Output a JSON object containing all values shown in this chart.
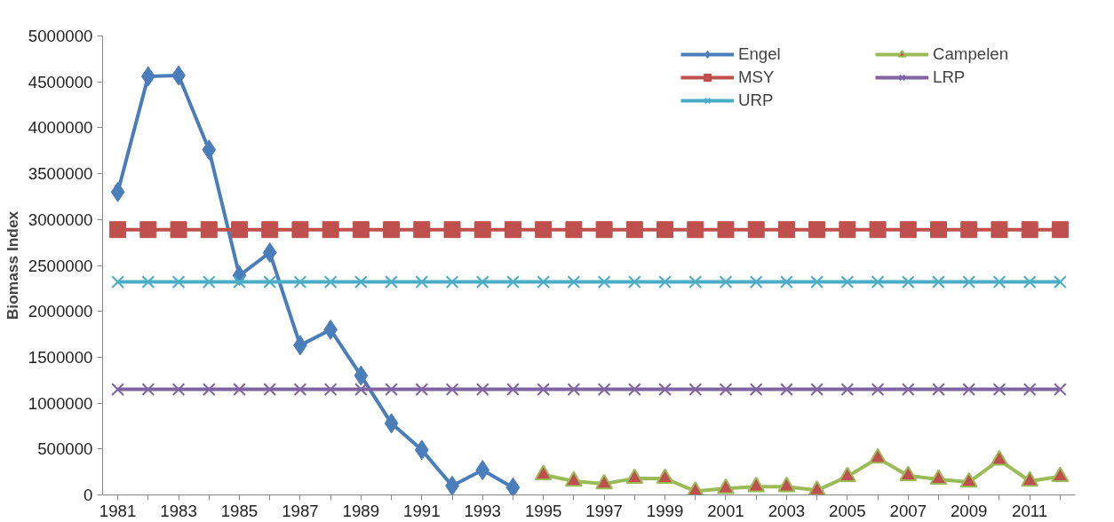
{
  "chart_data": {
    "type": "line",
    "ylabel": "Biomass Index",
    "x": [
      1981,
      1982,
      1983,
      1984,
      1985,
      1986,
      1987,
      1988,
      1989,
      1990,
      1991,
      1992,
      1993,
      1994,
      1995,
      1996,
      1997,
      1998,
      1999,
      2000,
      2001,
      2002,
      2003,
      2004,
      2005,
      2006,
      2007,
      2008,
      2009,
      2010,
      2011,
      2012
    ],
    "xlim": [
      1980.5,
      2012.5
    ],
    "xticks": [
      1981,
      {
        "value": 1982,
        "label": null
      },
      1983,
      {
        "value": 1984,
        "label": null
      },
      1985,
      {
        "value": 1986,
        "label": null
      },
      1987,
      {
        "value": 1988,
        "label": null
      },
      1989,
      {
        "value": 1990,
        "label": null
      },
      1991,
      {
        "value": 1992,
        "label": null
      },
      1993,
      {
        "value": 1994,
        "label": null
      },
      1995,
      {
        "value": 1996,
        "label": null
      },
      1997,
      {
        "value": 1998,
        "label": null
      },
      1999,
      {
        "value": 2000,
        "label": null
      },
      2001,
      {
        "value": 2002,
        "label": null
      },
      2003,
      {
        "value": 2004,
        "label": null
      },
      2005,
      {
        "value": 2006,
        "label": null
      },
      2007,
      {
        "value": 2008,
        "label": null
      },
      2009,
      {
        "value": 2010,
        "label": null
      },
      2011,
      {
        "value": 2012,
        "label": null
      }
    ],
    "ylim": [
      0,
      5000000
    ],
    "yticks": [
      0,
      500000,
      1000000,
      1500000,
      2000000,
      2500000,
      3000000,
      3500000,
      4000000,
      4500000,
      5000000
    ],
    "grid": false,
    "legend": "top right",
    "series": [
      {
        "name": "Engel",
        "color": "#4a7ebb",
        "marker": "diamond",
        "values": [
          3300000,
          4560000,
          4570000,
          3760000,
          2390000,
          2640000,
          1630000,
          1800000,
          1300000,
          780000,
          490000,
          100000,
          270000,
          80000,
          null,
          null,
          null,
          null,
          null,
          null,
          null,
          null,
          null,
          null,
          null,
          null,
          null,
          null,
          null,
          null,
          null,
          null
        ]
      },
      {
        "name": "Campelen",
        "color": "#9bbb59",
        "marker": "triangle",
        "values": [
          null,
          null,
          null,
          null,
          null,
          null,
          null,
          null,
          null,
          null,
          null,
          null,
          null,
          null,
          220000,
          150000,
          120000,
          180000,
          180000,
          40000,
          70000,
          90000,
          90000,
          50000,
          200000,
          400000,
          210000,
          170000,
          140000,
          380000,
          150000,
          200000
        ]
      },
      {
        "name": "MSY",
        "color": "#c0504d",
        "marker": "square",
        "values": [
          2890000,
          2890000,
          2890000,
          2890000,
          2890000,
          2890000,
          2890000,
          2890000,
          2890000,
          2890000,
          2890000,
          2890000,
          2890000,
          2890000,
          2890000,
          2890000,
          2890000,
          2890000,
          2890000,
          2890000,
          2890000,
          2890000,
          2890000,
          2890000,
          2890000,
          2890000,
          2890000,
          2890000,
          2890000,
          2890000,
          2890000,
          2890000
        ]
      },
      {
        "name": "LRP",
        "color": "#8064a2",
        "marker": "cross",
        "values": [
          1150000,
          1150000,
          1150000,
          1150000,
          1150000,
          1150000,
          1150000,
          1150000,
          1150000,
          1150000,
          1150000,
          1150000,
          1150000,
          1150000,
          1150000,
          1150000,
          1150000,
          1150000,
          1150000,
          1150000,
          1150000,
          1150000,
          1150000,
          1150000,
          1150000,
          1150000,
          1150000,
          1150000,
          1150000,
          1150000,
          1150000,
          1150000
        ]
      },
      {
        "name": "URP",
        "color": "#4bacc6",
        "marker": "cross",
        "values": [
          2320000,
          2320000,
          2320000,
          2320000,
          2320000,
          2320000,
          2320000,
          2320000,
          2320000,
          2320000,
          2320000,
          2320000,
          2320000,
          2320000,
          2320000,
          2320000,
          2320000,
          2320000,
          2320000,
          2320000,
          2320000,
          2320000,
          2320000,
          2320000,
          2320000,
          2320000,
          2320000,
          2320000,
          2320000,
          2320000,
          2320000,
          2320000
        ]
      }
    ]
  }
}
